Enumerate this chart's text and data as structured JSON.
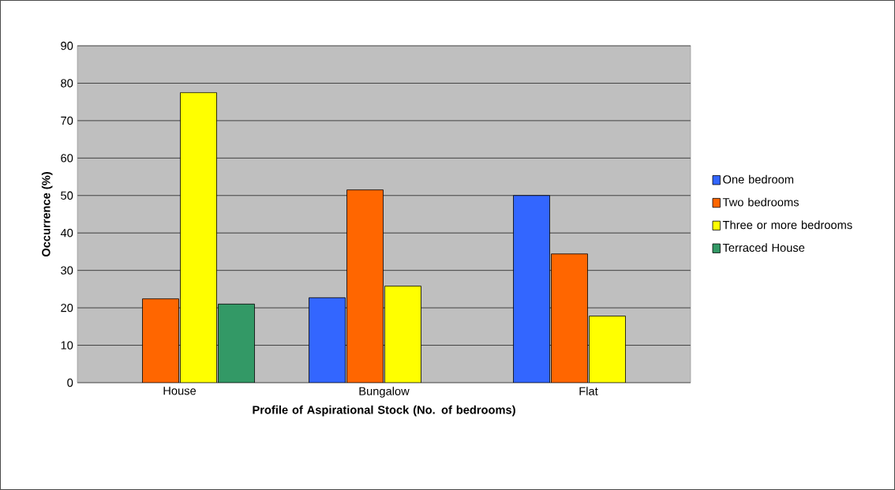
{
  "chart_data": {
    "type": "bar",
    "xlabel": "Profile of Aspirational Stock (No. of bedrooms)",
    "ylabel": "Occurrence (%)",
    "categories": [
      "House",
      "Bungalow",
      "Flat"
    ],
    "series": [
      {
        "name": "One bedroom",
        "color": "#3366ff",
        "values": [
          null,
          22.7,
          50.0
        ]
      },
      {
        "name": "Two bedrooms",
        "color": "#ff6600",
        "values": [
          22.4,
          51.5,
          34.4
        ]
      },
      {
        "name": "Three or more bedrooms",
        "color": "#ffff00",
        "values": [
          77.5,
          25.8,
          17.8
        ]
      },
      {
        "name": "Terraced House",
        "color": "#339966",
        "values": [
          21.0,
          null,
          null
        ]
      }
    ],
    "ylim": [
      0,
      90
    ],
    "yticks": [
      0,
      10,
      20,
      30,
      40,
      50,
      60,
      70,
      80,
      90
    ],
    "grid": "y",
    "legend": "right"
  }
}
